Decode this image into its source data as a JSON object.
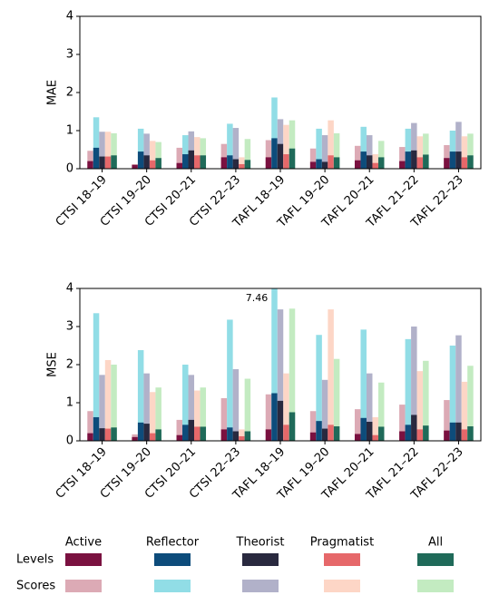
{
  "chart_data": [
    {
      "type": "bar",
      "ylabel": "MAE",
      "ylim": [
        0,
        4
      ],
      "yticks": [
        0,
        1,
        2,
        3,
        4
      ],
      "categories": [
        "CTSI 18–19",
        "CTSI 19–20",
        "CTSI 20–21",
        "CTSI 22–23",
        "TAFL 18–19",
        "TAFL 19–20",
        "TAFL 20–21",
        "TAFL 21–22",
        "TAFL 22–23"
      ],
      "series": [
        {
          "levels": [
            0.2,
            0.1,
            0.15,
            0.3,
            0.3,
            0.18,
            0.22,
            0.2,
            0.28
          ],
          "scores": [
            0.47,
            0.12,
            0.55,
            0.65,
            0.75,
            0.53,
            0.6,
            0.57,
            0.62
          ]
        },
        {
          "levels": [
            0.55,
            0.45,
            0.38,
            0.35,
            0.8,
            0.25,
            0.45,
            0.45,
            0.45
          ],
          "scores": [
            1.35,
            1.05,
            0.88,
            1.18,
            1.87,
            1.05,
            1.1,
            1.05,
            1.0
          ]
        },
        {
          "levels": [
            0.32,
            0.35,
            0.48,
            0.25,
            0.65,
            0.18,
            0.35,
            0.48,
            0.45
          ],
          "scores": [
            0.97,
            0.92,
            0.98,
            1.07,
            1.3,
            0.88,
            0.88,
            1.2,
            1.23
          ]
        },
        {
          "levels": [
            0.32,
            0.22,
            0.35,
            0.12,
            0.38,
            0.35,
            0.15,
            0.3,
            0.3
          ],
          "scores": [
            0.97,
            0.73,
            0.83,
            0.3,
            1.15,
            1.27,
            0.38,
            0.85,
            0.85
          ]
        },
        {
          "levels": [
            0.35,
            0.28,
            0.35,
            0.23,
            0.53,
            0.3,
            0.3,
            0.37,
            0.35
          ],
          "scores": [
            0.93,
            0.7,
            0.8,
            0.78,
            1.27,
            0.93,
            0.73,
            0.92,
            0.92
          ]
        }
      ]
    },
    {
      "type": "bar",
      "ylabel": "MSE",
      "ylim": [
        0,
        4
      ],
      "yticks": [
        0,
        1,
        2,
        3,
        4
      ],
      "categories": [
        "CTSI 18–19",
        "CTSI 19–20",
        "CTSI 20–21",
        "CTSI 22–23",
        "TAFL 18–19",
        "TAFL 19–20",
        "TAFL 20–21",
        "TAFL 21–22",
        "TAFL 22–23"
      ],
      "series": [
        {
          "levels": [
            0.2,
            0.1,
            0.15,
            0.3,
            0.3,
            0.22,
            0.18,
            0.25,
            0.27
          ],
          "scores": [
            0.78,
            0.17,
            0.55,
            1.12,
            1.22,
            0.78,
            0.83,
            0.95,
            1.07
          ]
        },
        {
          "levels": [
            0.62,
            0.48,
            0.42,
            0.35,
            1.25,
            0.52,
            0.6,
            0.42,
            0.48
          ],
          "scores": [
            3.35,
            2.38,
            2.0,
            3.18,
            7.46,
            2.78,
            2.92,
            2.67,
            2.5
          ]
        },
        {
          "levels": [
            0.33,
            0.45,
            0.55,
            0.25,
            1.05,
            0.32,
            0.5,
            0.68,
            0.48
          ],
          "scores": [
            1.73,
            1.77,
            1.73,
            1.88,
            3.45,
            1.6,
            1.77,
            3.0,
            2.77
          ]
        },
        {
          "levels": [
            0.32,
            0.2,
            0.37,
            0.12,
            0.42,
            0.42,
            0.15,
            0.3,
            0.3
          ],
          "scores": [
            2.12,
            1.28,
            1.32,
            0.3,
            1.77,
            3.45,
            0.62,
            1.83,
            1.55
          ]
        },
        {
          "levels": [
            0.35,
            0.3,
            0.37,
            0.25,
            0.75,
            0.38,
            0.37,
            0.4,
            0.38
          ],
          "scores": [
            2.0,
            1.4,
            1.4,
            1.63,
            3.47,
            2.15,
            1.53,
            2.1,
            1.97
          ]
        }
      ],
      "labelled": [
        {
          "series": 1,
          "kind": "scores",
          "index": 4
        }
      ]
    }
  ],
  "legend": {
    "rows": [
      "Levels",
      "Scores"
    ],
    "series": [
      {
        "name": "Active",
        "levels_color": "#7a1140",
        "scores_color": "#dcaab5"
      },
      {
        "name": "Reflector",
        "levels_color": "#0d4c7b",
        "scores_color": "#91dde6"
      },
      {
        "name": "Theorist",
        "levels_color": "#29293f",
        "scores_color": "#b1b1c9"
      },
      {
        "name": "Pragmatist",
        "levels_color": "#e6686a",
        "scores_color": "#fdd6c6"
      },
      {
        "name": "All",
        "levels_color": "#1f6a59",
        "scores_color": "#c3ebc1"
      }
    ]
  }
}
